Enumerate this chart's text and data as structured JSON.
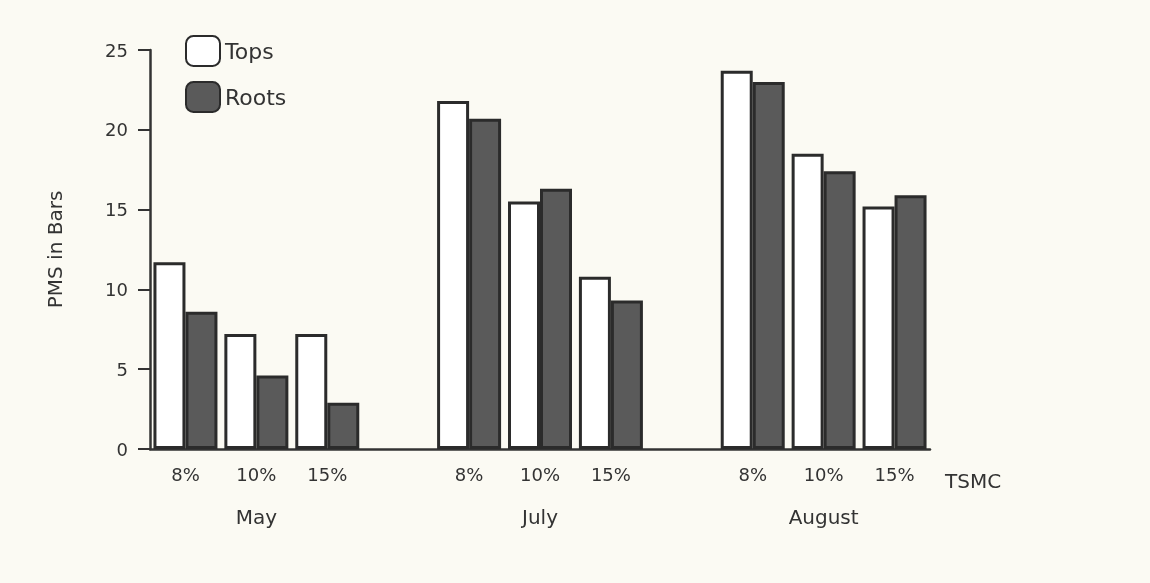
{
  "chart_data": {
    "type": "bar",
    "categories": [
      "8%",
      "10%",
      "15%",
      null,
      "8%",
      "10%",
      "15%",
      null,
      "8%",
      "10%",
      "15%"
    ],
    "series": [
      {
        "name": "Tops",
        "color": "#ffffff",
        "values": [
          11.7,
          7.2,
          7.2,
          null,
          21.8,
          15.5,
          10.8,
          null,
          23.7,
          18.5,
          15.2
        ]
      },
      {
        "name": "Roots",
        "color": "#5a5a5a",
        "values": [
          8.6,
          4.6,
          2.9,
          null,
          20.7,
          16.3,
          9.3,
          null,
          23.0,
          17.4,
          15.9
        ]
      }
    ],
    "xlabel": "TSMC",
    "ylabel": "PMS in Bars",
    "annotations": [
      "May",
      "July",
      "August"
    ],
    "ylim": [
      0,
      25
    ],
    "yticks": [
      0,
      5,
      10,
      15,
      20,
      25
    ],
    "grid": false,
    "legend": "top left"
  }
}
